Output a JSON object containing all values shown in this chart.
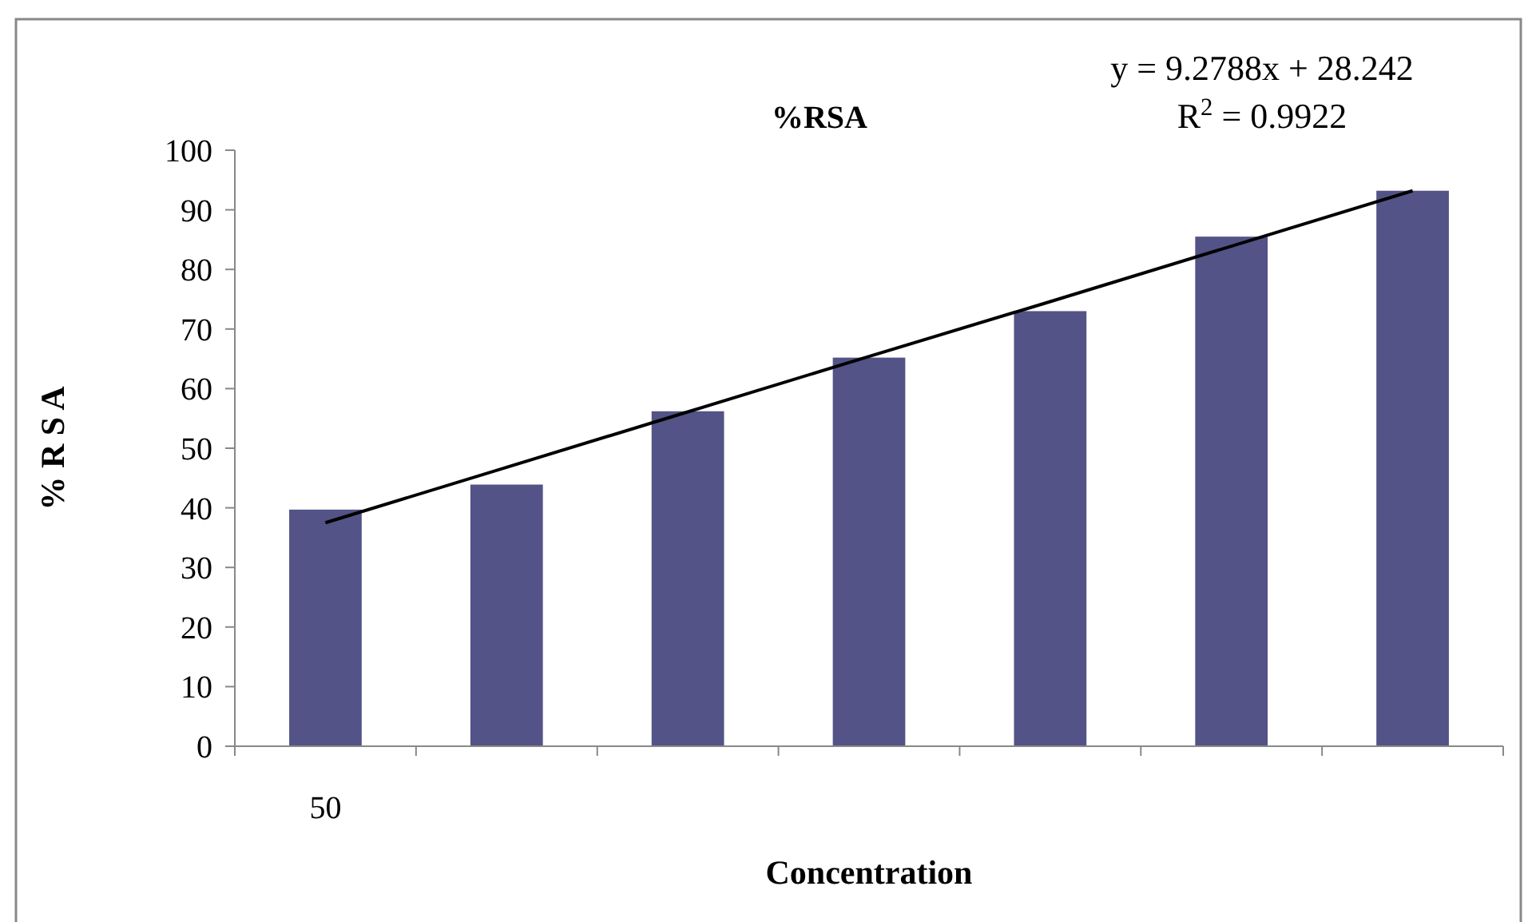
{
  "chart_data": {
    "type": "bar",
    "title": "%RSA",
    "xlabel": "Concentration",
    "ylabel": "% R S A",
    "categories": [
      "50",
      null,
      null,
      null,
      null,
      null,
      null
    ],
    "series": [
      {
        "color": "#535387",
        "values": [
          39.7,
          43.9,
          56.2,
          65.2,
          73.0,
          85.5,
          93.2
        ]
      },
      {
        "type": "line",
        "color": "#000000",
        "values": [
          37.5,
          46.8,
          56.1,
          65.4,
          74.6,
          83.9,
          93.2
        ]
      }
    ],
    "annotations": [
      "y = 9.2788x + 28.242",
      "R$^{2}$ = 0.9922"
    ],
    "ylim": [
      0,
      100
    ],
    "yticks": [
      0,
      10,
      20,
      30,
      40,
      50,
      60,
      70,
      80,
      90,
      100
    ],
    "grid": false
  }
}
